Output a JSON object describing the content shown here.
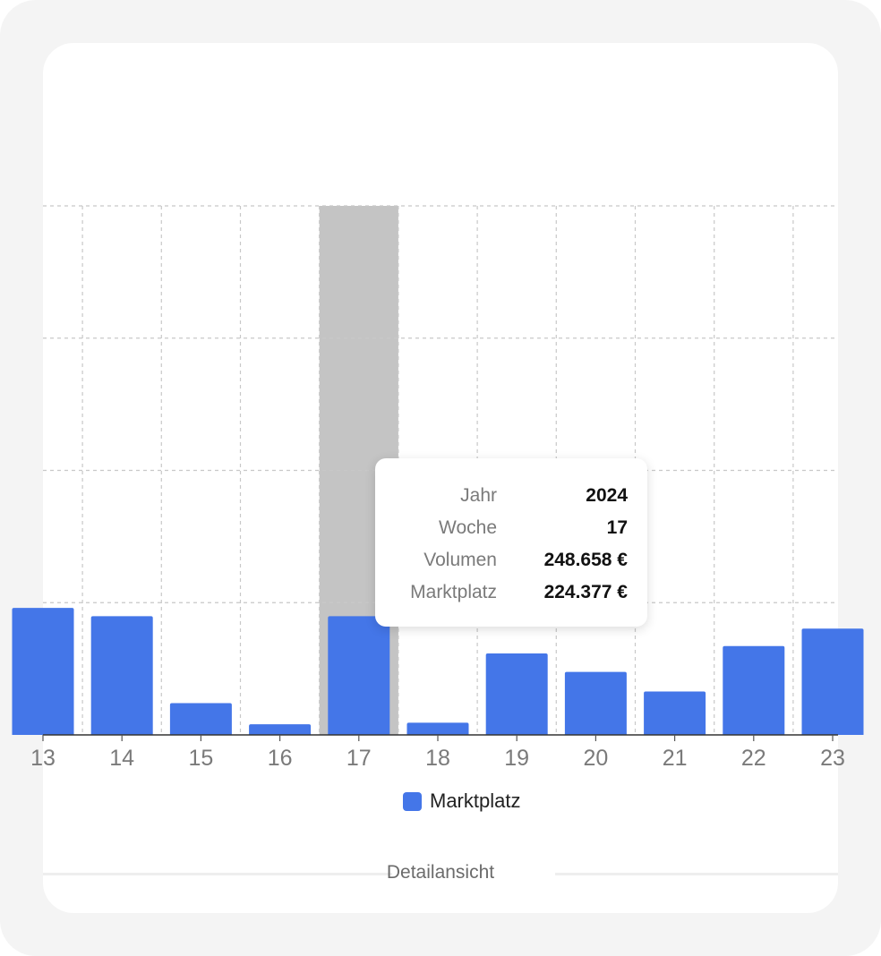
{
  "chart_data": {
    "type": "bar",
    "categories": [
      "13",
      "14",
      "15",
      "16",
      "17",
      "18",
      "19",
      "20",
      "21",
      "22",
      "23"
    ],
    "series": [
      {
        "name": "Marktplatz",
        "color": "#4476e8",
        "values": [
          240000,
          224377,
          60000,
          20000,
          224377,
          23000,
          154000,
          119000,
          82000,
          168000,
          201000
        ]
      }
    ],
    "ylim": [
      0,
      1000000
    ],
    "grid": true,
    "highlighted_category": "17",
    "highlight_color": "#c4c4c4",
    "legend_position": "bottom",
    "tooltip": {
      "rows": [
        {
          "label": "Jahr",
          "value": "2024"
        },
        {
          "label": "Woche",
          "value": "17"
        },
        {
          "label": "Volumen",
          "value": "248.658 €"
        },
        {
          "label": "Marktplatz",
          "value": "224.377 €"
        }
      ]
    }
  },
  "legend": {
    "label": "Marktplatz",
    "color": "#4476e8"
  },
  "detail": {
    "label": "Detailansicht"
  }
}
